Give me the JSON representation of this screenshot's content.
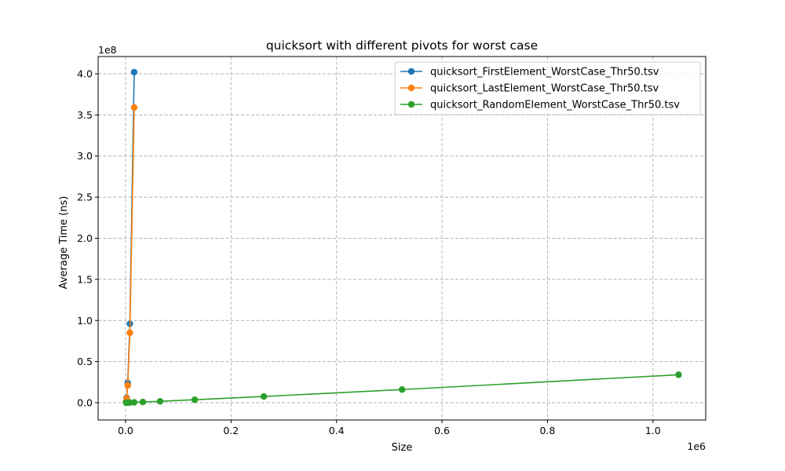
{
  "chart_data": {
    "type": "line",
    "title": "quicksort with different pivots for worst case",
    "xlabel": "Size",
    "ylabel": "Average Time (ns)",
    "x_offset_label": "1e6",
    "y_offset_label": "1e8",
    "xlim": [
      -52000,
      1100000
    ],
    "ylim": [
      -21000000,
      421000000
    ],
    "x_ticks": [
      0,
      200000,
      400000,
      600000,
      800000,
      1000000
    ],
    "x_tick_labels": [
      "0.0",
      "0.2",
      "0.4",
      "0.6",
      "0.8",
      "1.0"
    ],
    "y_ticks": [
      0,
      50000000,
      100000000,
      150000000,
      200000000,
      250000000,
      300000000,
      350000000,
      400000000
    ],
    "y_tick_labels": [
      "0.0",
      "0.5",
      "1.0",
      "1.5",
      "2.0",
      "2.5",
      "3.0",
      "3.5",
      "4.0"
    ],
    "grid": true,
    "legend_position": "top-right",
    "series": [
      {
        "name": "quicksort_FirstElement_WorstCase_Thr50.tsv",
        "color": "#1f77b4",
        "x": [
          1024,
          2048,
          4096,
          8192,
          16384
        ],
        "y": [
          1500000,
          6000000,
          24000000,
          96000000,
          402000000
        ]
      },
      {
        "name": "quicksort_LastElement_WorstCase_Thr50.tsv",
        "color": "#ff7f0e",
        "x": [
          1024,
          2048,
          4096,
          8192,
          16384
        ],
        "y": [
          1300000,
          5300000,
          21000000,
          85000000,
          359000000
        ]
      },
      {
        "name": "quicksort_RandomElement_WorstCase_Thr50.tsv",
        "color": "#2ca02c",
        "x": [
          1024,
          2048,
          4096,
          8192,
          16384,
          32768,
          65536,
          131072,
          262144,
          524288,
          1048576
        ],
        "y": [
          20000,
          40000,
          90000,
          190000,
          400000,
          850000,
          1700000,
          3600000,
          7600000,
          16000000,
          34000000
        ]
      }
    ]
  }
}
